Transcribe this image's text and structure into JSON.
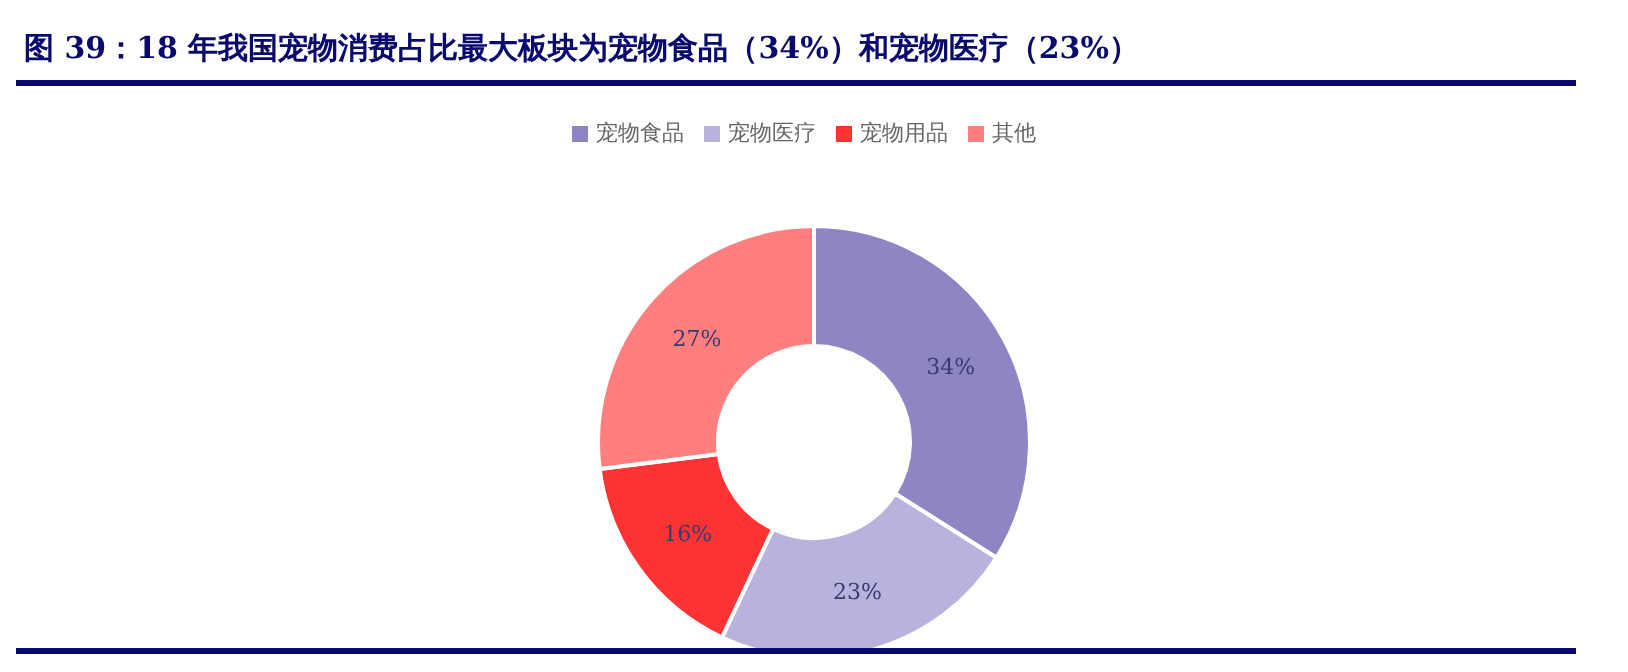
{
  "chart_data": {
    "type": "donut",
    "title": "图 39：18 年我国宠物消费占比最大板块为宠物食品（34%）和宠物医疗（23%）",
    "categories": [
      "宠物食品",
      "宠物医疗",
      "宠物用品",
      "其他"
    ],
    "values": [
      34,
      23,
      16,
      27
    ],
    "colors": [
      "#8e86c4",
      "#b8b3dc",
      "#ff3333",
      "#ff7f7f"
    ],
    "value_labels": [
      "34%",
      "23%",
      "16%",
      "27%"
    ],
    "legend": "top"
  }
}
